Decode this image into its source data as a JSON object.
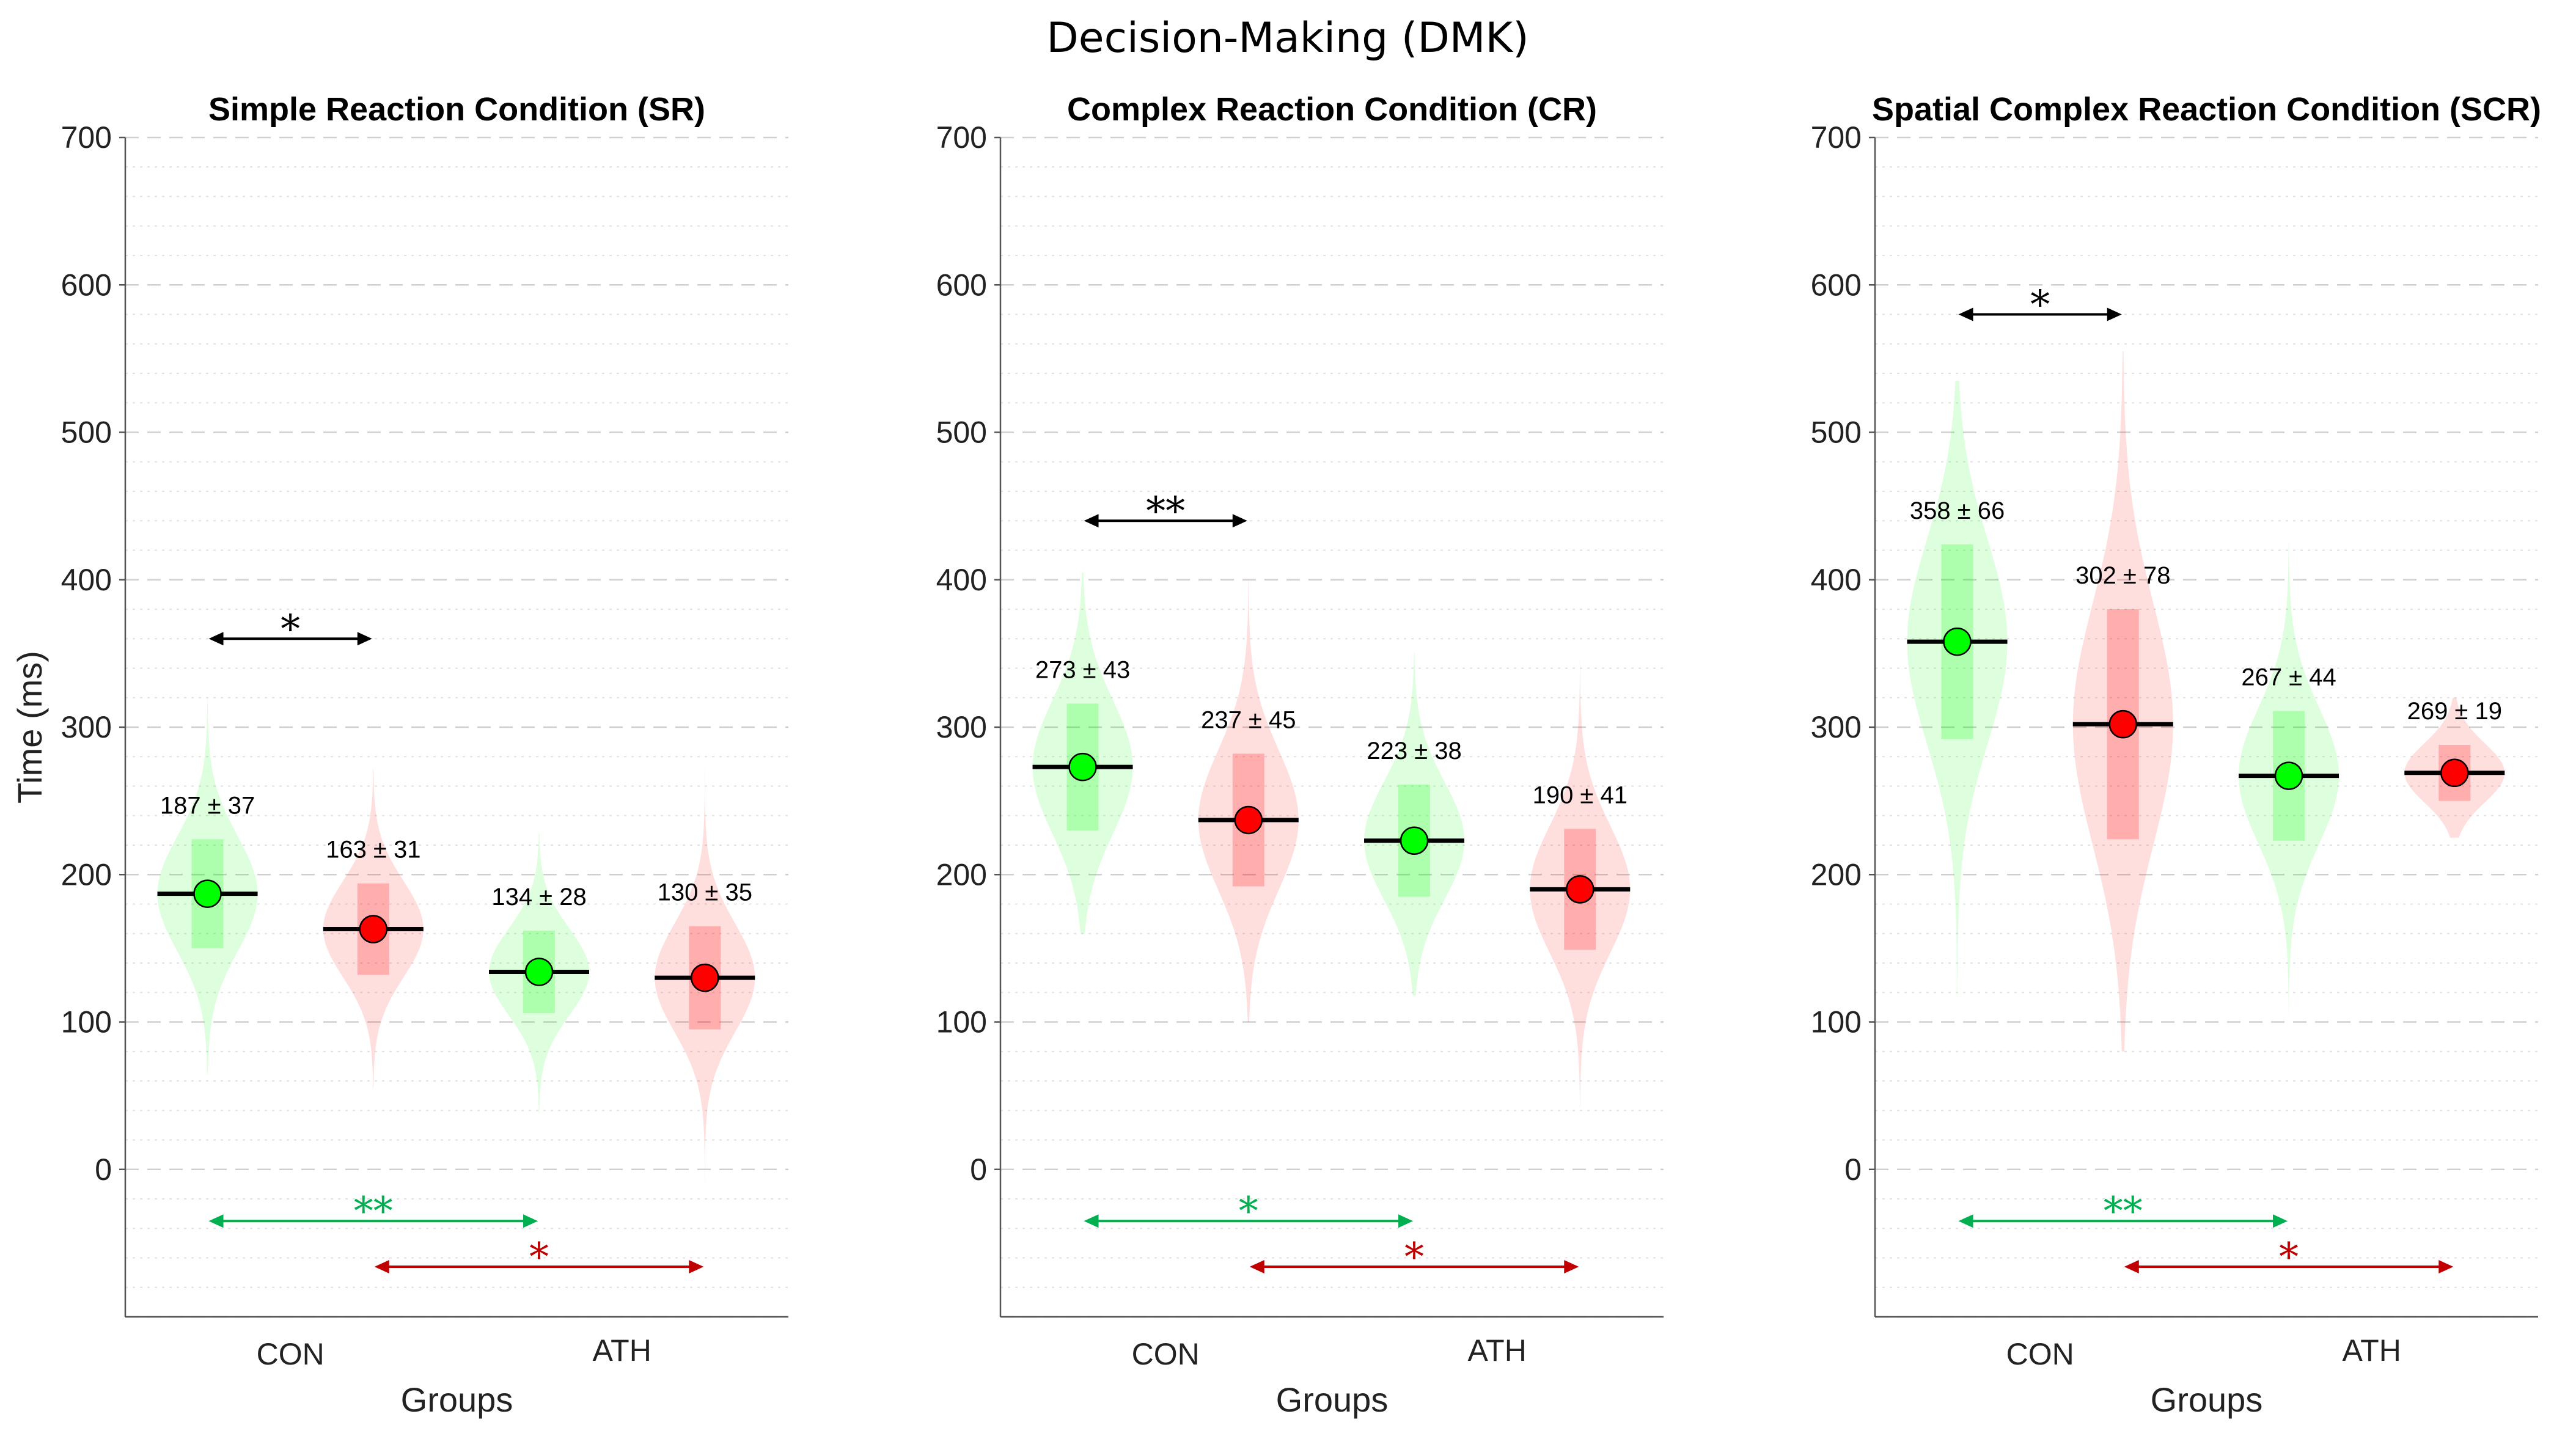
{
  "figure_title": "Decision-Making (DMK)",
  "colors": {
    "con": "#00ff00",
    "ath": "#ff0000",
    "green_sig": "#00b050",
    "red_sig": "#c00000",
    "sig_black": "#000000"
  },
  "chart_data": [
    {
      "type": "violin",
      "title": "Simple Reaction Condition (SR)",
      "xlabel": "Groups",
      "ylabel": "Time (ms)",
      "ylim": [
        -100,
        700
      ],
      "yticks": [
        0,
        100,
        200,
        300,
        400,
        500,
        600,
        700
      ],
      "x_group_labels": [
        "CON",
        "ATH"
      ],
      "points": [
        {
          "series": "CON",
          "mean": 187,
          "sd": 37,
          "label": "187 ± 37",
          "vmin": 65,
          "vmax": 320
        },
        {
          "series": "ATH",
          "mean": 163,
          "sd": 31,
          "label": "163 ± 31",
          "vmin": 55,
          "vmax": 272
        },
        {
          "series": "CON",
          "mean": 134,
          "sd": 28,
          "label": "134 ± 28",
          "vmin": 38,
          "vmax": 228
        },
        {
          "series": "ATH",
          "mean": 130,
          "sd": 35,
          "label": "130 ± 35",
          "vmin": -15,
          "vmax": 282
        }
      ],
      "sig": [
        {
          "from": 0,
          "to": 1,
          "y": 360,
          "label": "*",
          "color": "black"
        },
        {
          "from": 0,
          "to": 2,
          "y": -35,
          "label": "**",
          "color": "green"
        },
        {
          "from": 1,
          "to": 3,
          "y": -66,
          "label": "*",
          "color": "red"
        }
      ]
    },
    {
      "type": "violin",
      "title": "Complex Reaction Condition (CR)",
      "xlabel": "Groups",
      "ylabel": "",
      "ylim": [
        -100,
        700
      ],
      "yticks": [
        0,
        100,
        200,
        300,
        400,
        500,
        600,
        700
      ],
      "x_group_labels": [
        "CON",
        "ATH"
      ],
      "points": [
        {
          "series": "CON",
          "mean": 273,
          "sd": 43,
          "label": "273 ± 43",
          "vmin": 160,
          "vmax": 405
        },
        {
          "series": "ATH",
          "mean": 237,
          "sd": 45,
          "label": "237 ± 45",
          "vmin": 100,
          "vmax": 400
        },
        {
          "series": "CON",
          "mean": 223,
          "sd": 38,
          "label": "223 ± 38",
          "vmin": 118,
          "vmax": 350
        },
        {
          "series": "ATH",
          "mean": 190,
          "sd": 41,
          "label": "190 ± 41",
          "vmin": 42,
          "vmax": 345
        }
      ],
      "sig": [
        {
          "from": 0,
          "to": 1,
          "y": 440,
          "label": "**",
          "color": "black"
        },
        {
          "from": 0,
          "to": 2,
          "y": -35,
          "label": "*",
          "color": "green"
        },
        {
          "from": 1,
          "to": 3,
          "y": -66,
          "label": "*",
          "color": "red"
        }
      ]
    },
    {
      "type": "violin",
      "title": "Spatial Complex Reaction Condition (SCR)",
      "xlabel": "Groups",
      "ylabel": "",
      "ylim": [
        -100,
        700
      ],
      "yticks": [
        0,
        100,
        200,
        300,
        400,
        500,
        600,
        700
      ],
      "x_group_labels": [
        "CON",
        "ATH"
      ],
      "points": [
        {
          "series": "CON",
          "mean": 358,
          "sd": 66,
          "label": "358 ± 66",
          "vmin": 115,
          "vmax": 535
        },
        {
          "series": "ATH",
          "mean": 302,
          "sd": 78,
          "label": "302 ± 78",
          "vmin": 80,
          "vmax": 555
        },
        {
          "series": "CON",
          "mean": 267,
          "sd": 44,
          "label": "267 ± 44",
          "vmin": 105,
          "vmax": 425
        },
        {
          "series": "ATH",
          "mean": 269,
          "sd": 19,
          "label": "269 ± 19",
          "vmin": 225,
          "vmax": 320
        }
      ],
      "sig": [
        {
          "from": 0,
          "to": 1,
          "y": 580,
          "label": "*",
          "color": "black"
        },
        {
          "from": 0,
          "to": 2,
          "y": -35,
          "label": "**",
          "color": "green"
        },
        {
          "from": 1,
          "to": 3,
          "y": -66,
          "label": "*",
          "color": "red"
        }
      ]
    }
  ]
}
